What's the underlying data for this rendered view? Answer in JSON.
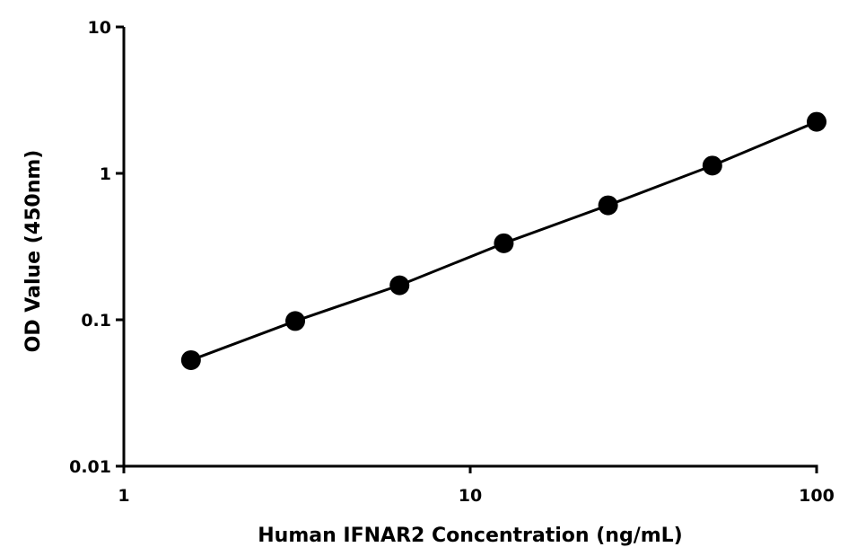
{
  "chart_data": {
    "type": "line",
    "title": "",
    "xlabel": "Human IFNAR2 Concentration (ng/mL)",
    "ylabel": "OD Value (450nm)",
    "x_scale": "log",
    "y_scale": "log",
    "xlim": [
      1,
      100
    ],
    "ylim": [
      0.01,
      10
    ],
    "x_ticks": [
      1,
      10,
      100
    ],
    "x_tick_labels": [
      "1",
      "10",
      "100"
    ],
    "y_ticks": [
      0.01,
      0.1,
      1,
      10
    ],
    "y_tick_labels": [
      "0.01",
      "0.1",
      "1",
      "10"
    ],
    "grid": false,
    "legend": "none",
    "series": [
      {
        "x": [
          1.5625,
          3.125,
          6.25,
          12.5,
          25,
          50,
          100
        ],
        "y": [
          0.053,
          0.098,
          0.172,
          0.333,
          0.605,
          1.13,
          2.25
        ],
        "color": "#000000",
        "marker": "circle"
      }
    ]
  }
}
